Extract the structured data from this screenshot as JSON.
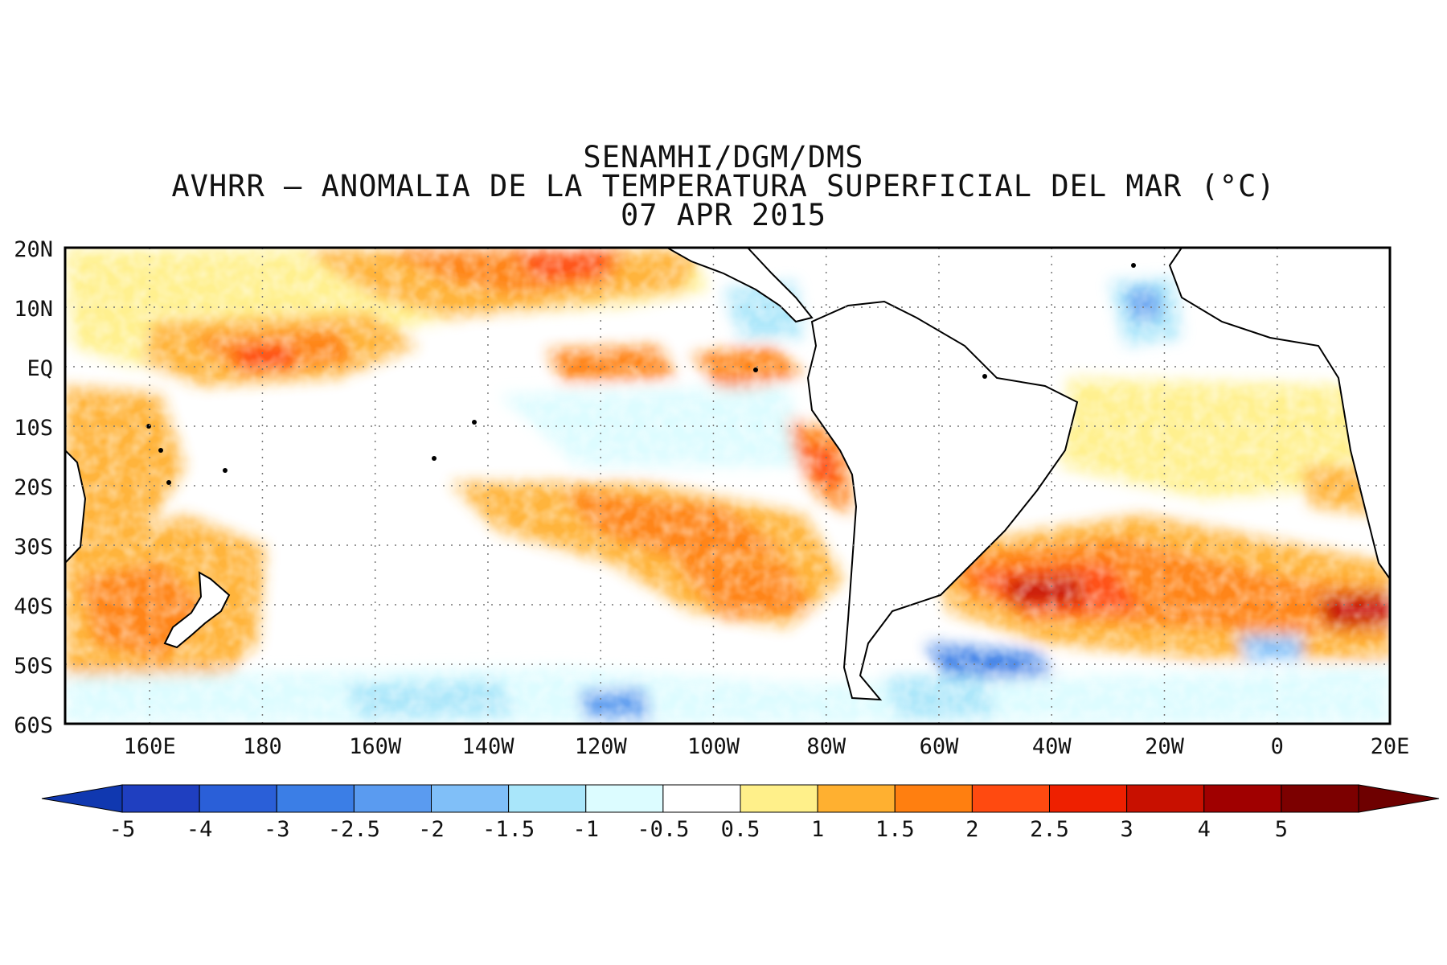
{
  "title": {
    "line1": "SENAMHI/DGM/DMS",
    "line2": "AVHRR – ANOMALIA DE LA TEMPERATURA SUPERFICIAL DEL MAR (°C)",
    "line3": "07 APR 2015"
  },
  "map": {
    "variable": "Sea surface temperature anomaly (°C)",
    "lon_range": [
      145,
      20
    ],
    "lat_range": [
      -60,
      20
    ],
    "y_ticks": [
      "20N",
      "10N",
      "EQ",
      "10S",
      "20S",
      "30S",
      "40S",
      "50S",
      "60S"
    ],
    "x_ticks": [
      "160E",
      "180",
      "160W",
      "140W",
      "120W",
      "100W",
      "80W",
      "60W",
      "40W",
      "20W",
      "0",
      "20E"
    ],
    "gridlines": "dotted"
  },
  "colorbar": {
    "labels": [
      "-5",
      "-4",
      "-3",
      "-2.5",
      "-2",
      "-1.5",
      "-1",
      "-0.5",
      "0.5",
      "1",
      "1.5",
      "2",
      "2.5",
      "3",
      "4",
      "5"
    ],
    "colors": [
      "#1f3fc0",
      "#2a5fd8",
      "#3b7ee6",
      "#5a9bf0",
      "#80bff8",
      "#a9e6fa",
      "#dcfcff",
      "#ffffff",
      "#fff08a",
      "#ffb030",
      "#ff7f10",
      "#ff4a10",
      "#ee2000",
      "#c81000",
      "#a00000",
      "#7c0000"
    ],
    "low_arrow_color": "#1038b0",
    "high_arrow_color": "#6e0000"
  },
  "colors": {
    "land": "#ffffff",
    "coast": "#000000",
    "frame": "#000000",
    "neutral": "#ffffff"
  },
  "anomaly_regions": [
    {
      "name": "north-pacific-warm-band",
      "level": "warm-1.5"
    },
    {
      "name": "equatorial-central-pacific-warm",
      "level": "warm-2"
    },
    {
      "name": "equatorial-east-pacific-neutral",
      "level": "neutral"
    },
    {
      "name": "peru-coast-warm",
      "level": "warm-1.5"
    },
    {
      "name": "south-pacific-warm-band",
      "level": "warm-1.5"
    },
    {
      "name": "new-zealand-warm",
      "level": "warm-1.5"
    },
    {
      "name": "south-atlantic-warm",
      "level": "warm-2.5"
    },
    {
      "name": "southern-ocean-cool",
      "level": "cool-1.5"
    },
    {
      "name": "tropical-atlantic-warm",
      "level": "warm-0.5"
    }
  ]
}
